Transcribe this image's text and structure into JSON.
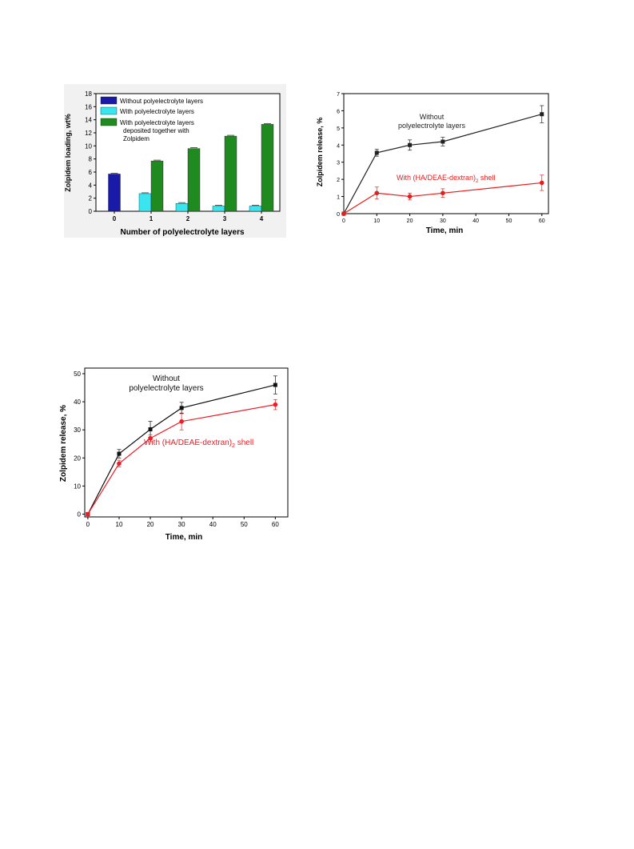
{
  "chart_data": [
    {
      "type": "bar",
      "title": "",
      "xlabel": "Number of polyelectrolyte layers",
      "ylabel": "Zolpidem loading, wt%",
      "ylim": [
        0,
        18
      ],
      "yticks": [
        0,
        2,
        4,
        6,
        8,
        10,
        12,
        14,
        16,
        18
      ],
      "categories": [
        "0",
        "1",
        "2",
        "3",
        "4"
      ],
      "legend_position": "top-left",
      "series": [
        {
          "name": "Without polyelectrolyte layers",
          "color": "#1a1aa8",
          "values": [
            5.7,
            null,
            null,
            null,
            null
          ]
        },
        {
          "name": "With polyelectrolyte layers",
          "color": "#39e6f0",
          "values": [
            null,
            2.7,
            1.2,
            0.8,
            0.8
          ]
        },
        {
          "name": "With polyelectrolyte layers deposited together with Zolpidem",
          "color": "#1f8a1f",
          "values": [
            null,
            7.7,
            9.6,
            11.5,
            13.3
          ]
        }
      ]
    },
    {
      "type": "line",
      "title": "",
      "xlabel": "Time, min",
      "ylabel": "Zolpidem release, %",
      "xlim": [
        0,
        62
      ],
      "ylim": [
        0,
        7
      ],
      "xticks": [
        0,
        10,
        20,
        30,
        40,
        50,
        60
      ],
      "yticks": [
        0,
        1,
        2,
        3,
        4,
        5,
        6,
        7
      ],
      "x": [
        0,
        10,
        20,
        30,
        60
      ],
      "series": [
        {
          "name": "Without polyelectrolyte layers",
          "color": "#222222",
          "values": [
            0,
            3.55,
            4.0,
            4.2,
            5.8
          ],
          "errors": [
            0.05,
            0.2,
            0.3,
            0.25,
            0.5
          ]
        },
        {
          "name": "With (HA/DEAE-dextran)2 shell",
          "color": "#e81c1c",
          "values": [
            0,
            1.2,
            1.0,
            1.2,
            1.8
          ],
          "errors": [
            0.05,
            0.35,
            0.2,
            0.25,
            0.45
          ]
        }
      ],
      "annotations": [
        {
          "text": "Without polyelectrolyte layers",
          "series": 0
        },
        {
          "text": "With (HA/DEAE-dextran)",
          "sub": "2",
          "tail": " shell",
          "series": 1
        }
      ]
    },
    {
      "type": "line",
      "title": "",
      "xlabel": "Time, min",
      "ylabel": "Zolpidem release, %",
      "xlim": [
        -1,
        64
      ],
      "ylim": [
        -1,
        52
      ],
      "xticks": [
        0,
        10,
        20,
        30,
        40,
        50,
        60
      ],
      "yticks": [
        0,
        10,
        20,
        30,
        40,
        50
      ],
      "x": [
        0,
        10,
        20,
        30,
        60
      ],
      "series": [
        {
          "name": "Without polyelectrolyte layers",
          "color": "#111111",
          "values": [
            0,
            21.5,
            30.2,
            37.8,
            46.0
          ],
          "errors": [
            0.4,
            1.5,
            2.8,
            2.0,
            3.2
          ]
        },
        {
          "name": "With (HA/DEAE-dextran)2 shell",
          "color": "#ee1c24",
          "values": [
            0,
            18.0,
            27.0,
            33.0,
            39.0
          ],
          "errors": [
            0.4,
            1.2,
            1.2,
            3.0,
            1.8
          ]
        }
      ],
      "annotations": [
        {
          "text": "Without polyelectrolyte layers",
          "series": 0
        },
        {
          "text": "With (HA/DEAE-dextran)",
          "sub": "2",
          "tail": " shell",
          "series": 1
        }
      ]
    }
  ]
}
